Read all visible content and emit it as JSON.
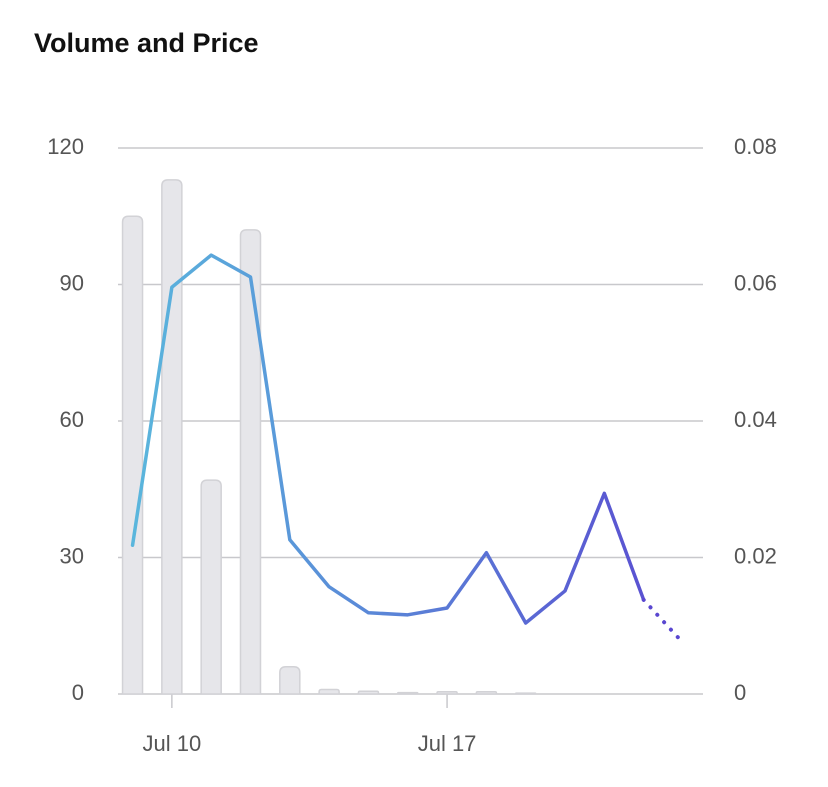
{
  "chart_data": {
    "type": "bar-line",
    "title": "Volume and Price",
    "x": [
      9,
      10,
      11,
      12,
      13,
      14,
      15,
      16,
      17,
      18,
      19,
      20,
      21,
      22,
      23
    ],
    "xlim": [
      8.63,
      23.51
    ],
    "xticks": [
      {
        "value": 10,
        "label": "Jul 10"
      },
      {
        "value": 17,
        "label": "Jul 17"
      }
    ],
    "ylim": [
      0,
      120
    ],
    "yticks": [
      0,
      30,
      60,
      90,
      120
    ],
    "y2lim": [
      0,
      0.08
    ],
    "y2ticks": [
      0,
      0.02,
      0.04,
      0.06,
      0.08
    ],
    "grid": true,
    "series": [
      {
        "type": "bar",
        "axis": "y",
        "color": "#e6e6ea",
        "values": [
          105,
          113,
          47,
          102,
          6,
          1,
          0.6,
          0.3,
          0.5,
          0.5,
          0.2,
          null,
          null,
          null,
          null
        ]
      },
      {
        "type": "line",
        "axis": "y2",
        "color": [
          "#5ab9dd",
          "#5a47d0"
        ],
        "values": [
          0.0218,
          0.0596,
          0.0643,
          0.0611,
          0.0226,
          0.0157,
          0.0119,
          0.0116,
          0.0126,
          0.0207,
          0.0104,
          0.0151,
          0.0294,
          0.0138,
          null
        ]
      },
      {
        "type": "line",
        "axis": "y2",
        "style": "dotted",
        "color": [
          "#5a47d0",
          "#5a47d0"
        ],
        "values": [
          null,
          null,
          null,
          null,
          null,
          null,
          null,
          null,
          null,
          null,
          null,
          null,
          null,
          0.0138,
          0.0075
        ]
      }
    ]
  }
}
